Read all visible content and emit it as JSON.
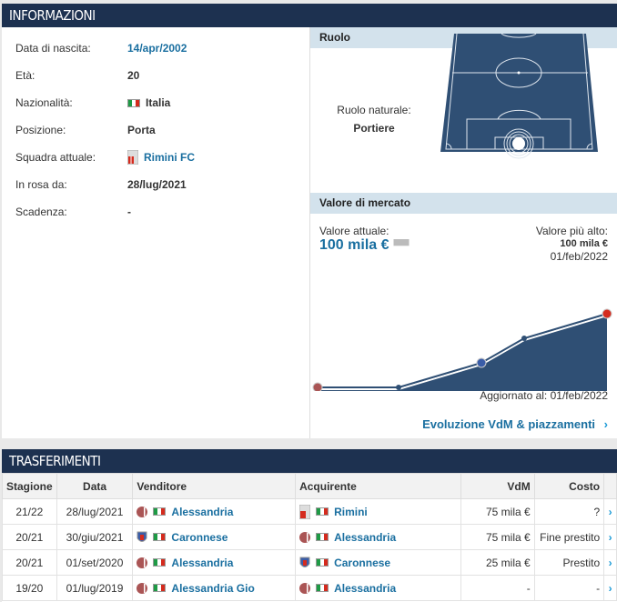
{
  "info": {
    "title": "INFORMAZIONI",
    "rows": [
      {
        "label": "Data di nascita:",
        "value": "14/apr/2002"
      },
      {
        "label": "Età:",
        "value": "20"
      },
      {
        "label": "Nazionalità:",
        "value": "Italia"
      },
      {
        "label": "Posizione:",
        "value": "Porta"
      },
      {
        "label": "Squadra attuale:",
        "value": "Rimini FC"
      },
      {
        "label": "In rosa da:",
        "value": "28/lug/2021"
      },
      {
        "label": "Scadenza:",
        "value": "-"
      }
    ]
  },
  "role": {
    "title": "Ruolo",
    "label": "Ruolo naturale:",
    "value": "Portiere"
  },
  "market": {
    "title": "Valore di mercato",
    "current_label": "Valore attuale:",
    "current_value": "100 mila €",
    "highest_label": "Valore più alto:",
    "highest_value": "100 mila €",
    "highest_date": "01/feb/2022",
    "updated": "Aggiornato al: 01/feb/2022",
    "link": "Evoluzione VdM & piazzamenti",
    "colors": {
      "area": "#2f4f74",
      "link": "#1a6fa0"
    }
  },
  "chart_data": {
    "type": "area",
    "values_thousand_eur": [
      25,
      25,
      50,
      75,
      100
    ],
    "clubs": [
      "Alessandria",
      "",
      "Caronnese",
      "",
      "Rimini"
    ]
  },
  "transfers": {
    "title": "TRASFERIMENTI",
    "headers": [
      "Stagione",
      "Data",
      "Venditore",
      "Acquirente",
      "VdM",
      "Costo"
    ],
    "rows": [
      {
        "season": "21/22",
        "date": "28/lug/2021",
        "from": "Alessandria",
        "to": "Rimini",
        "mv": "75 mila €",
        "fee": "?"
      },
      {
        "season": "20/21",
        "date": "30/giu/2021",
        "from": "Caronnese",
        "to": "Alessandria",
        "mv": "75 mila €",
        "fee": "Fine prestito"
      },
      {
        "season": "20/21",
        "date": "01/set/2020",
        "from": "Alessandria",
        "to": "Caronnese",
        "mv": "25 mila €",
        "fee": "Prestito"
      },
      {
        "season": "19/20",
        "date": "01/lug/2019",
        "from": "Alessandria Gio",
        "to": "Alessandria",
        "mv": "-",
        "fee": "-"
      }
    ]
  }
}
